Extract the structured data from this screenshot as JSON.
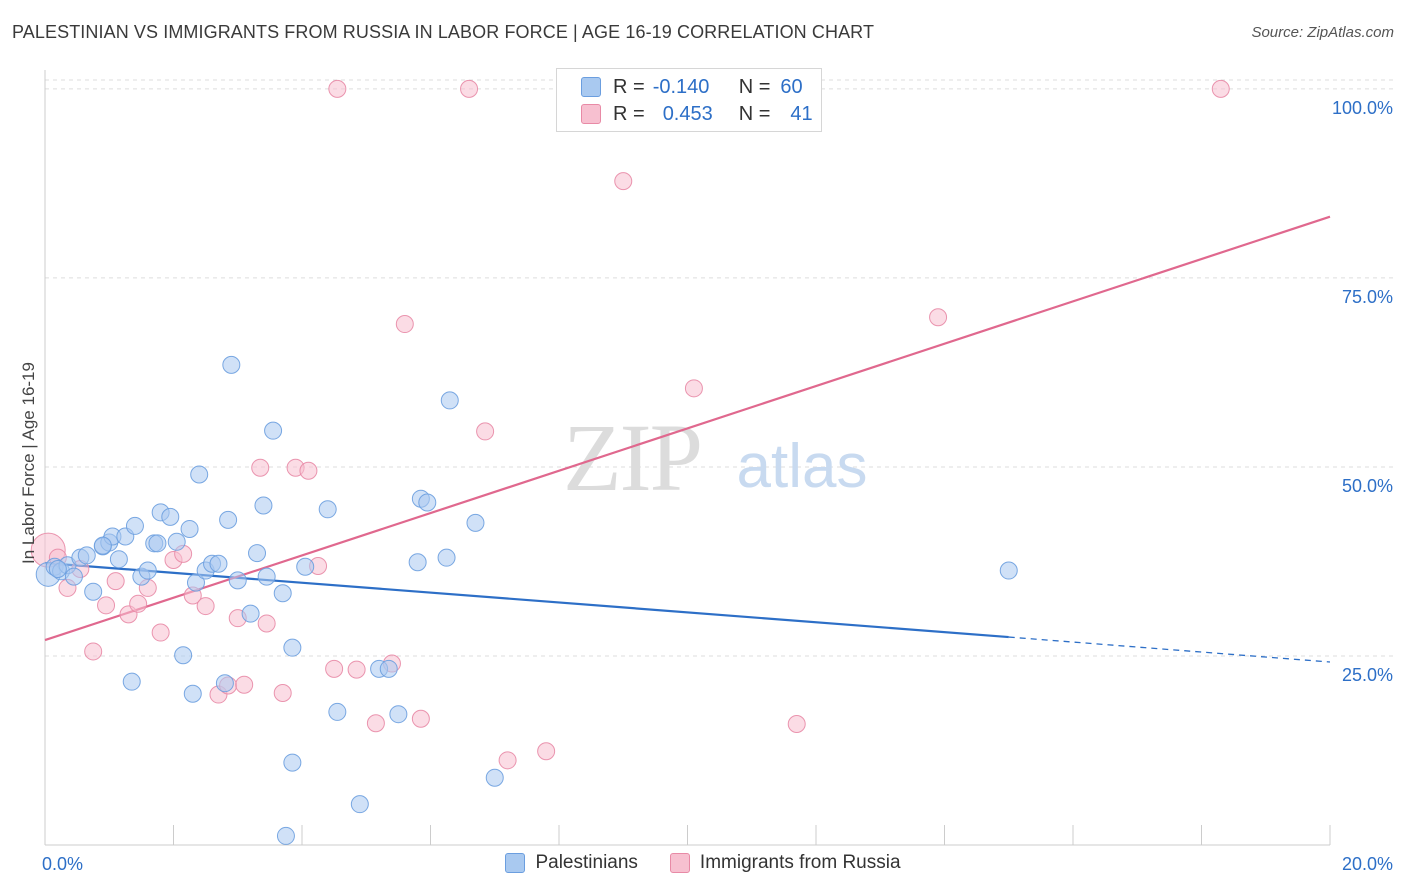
{
  "title": "PALESTINIAN VS IMMIGRANTS FROM RUSSIA IN LABOR FORCE | AGE 16-19 CORRELATION CHART",
  "source": "Source: ZipAtlas.com",
  "watermark": {
    "zip": "ZIP",
    "atlas": "atlas"
  },
  "legend": {
    "rows": [
      {
        "r_label": "R =",
        "r_value": "-0.140",
        "n_label": "N =",
        "n_value": "60",
        "color": "#a9c9f0",
        "border": "#6b9edf"
      },
      {
        "r_label": "R =",
        "r_value": "0.453",
        "n_label": "N =",
        "n_value": "41",
        "color": "#f7c0d0",
        "border": "#e88aa6"
      }
    ]
  },
  "bottom_legend": [
    {
      "label": "Palestinians",
      "color": "#a9c9f0",
      "border": "#6b9edf"
    },
    {
      "label": "Immigrants from Russia",
      "color": "#f7c0d0",
      "border": "#e88aa6"
    }
  ],
  "chart_data": {
    "type": "scatter",
    "title": "PALESTINIAN VS IMMIGRANTS FROM RUSSIA IN LABOR FORCE | AGE 16-19 CORRELATION CHART",
    "xlabel": "",
    "ylabel": "In Labor Force | Age 16-19",
    "xlim": [
      0,
      20
    ],
    "ylim": [
      0,
      102.5
    ],
    "x_ticks": [
      0,
      2,
      4,
      6,
      8,
      10,
      12,
      14,
      16,
      18,
      20
    ],
    "x_tick_labels": {
      "0": "0.0%",
      "20": "20.0%"
    },
    "y_ticks": [
      25,
      50,
      75,
      100
    ],
    "y_tick_labels": [
      "25.0%",
      "50.0%",
      "75.0%",
      "100.0%"
    ],
    "grid": true,
    "legend_position": "top-center",
    "series": [
      {
        "name": "Palestinians",
        "color": "#6b9edf",
        "fill": "#a9c9f0",
        "line_color": "#2d6fc7",
        "trend": {
          "x0": 0,
          "y0": 37.3,
          "x1": 15.0,
          "y1": 27.5,
          "dashed_to_x": 20,
          "dashed_to_y": 24.2
        },
        "points": [
          [
            0.05,
            35.8
          ],
          [
            0.15,
            36.8
          ],
          [
            0.25,
            36.2
          ],
          [
            0.35,
            37.0
          ],
          [
            0.45,
            35.5
          ],
          [
            0.55,
            38.0
          ],
          [
            0.65,
            38.3
          ],
          [
            0.75,
            33.5
          ],
          [
            0.9,
            39.5
          ],
          [
            1.0,
            40.0
          ],
          [
            1.05,
            40.8
          ],
          [
            1.15,
            37.8
          ],
          [
            1.25,
            40.8
          ],
          [
            1.4,
            42.2
          ],
          [
            1.5,
            35.5
          ],
          [
            1.6,
            36.3
          ],
          [
            1.7,
            39.9
          ],
          [
            1.75,
            39.9
          ],
          [
            1.8,
            44.0
          ],
          [
            1.95,
            43.4
          ],
          [
            2.05,
            40.1
          ],
          [
            2.15,
            25.1
          ],
          [
            2.25,
            41.8
          ],
          [
            2.35,
            34.7
          ],
          [
            2.4,
            49.0
          ],
          [
            2.5,
            36.3
          ],
          [
            2.6,
            37.2
          ],
          [
            2.7,
            37.2
          ],
          [
            2.8,
            21.4
          ],
          [
            2.85,
            43.0
          ],
          [
            2.9,
            63.5
          ],
          [
            3.0,
            35.0
          ],
          [
            3.2,
            30.6
          ],
          [
            3.3,
            38.6
          ],
          [
            3.4,
            44.9
          ],
          [
            3.45,
            35.5
          ],
          [
            3.55,
            54.8
          ],
          [
            3.7,
            33.3
          ],
          [
            3.75,
            1.2
          ],
          [
            3.85,
            26.1
          ],
          [
            3.85,
            10.9
          ],
          [
            4.05,
            36.8
          ],
          [
            4.4,
            44.4
          ],
          [
            4.55,
            17.6
          ],
          [
            4.9,
            5.4
          ],
          [
            5.2,
            23.3
          ],
          [
            5.35,
            23.3
          ],
          [
            5.5,
            17.3
          ],
          [
            5.8,
            37.4
          ],
          [
            5.85,
            45.8
          ],
          [
            5.95,
            45.3
          ],
          [
            6.25,
            38.0
          ],
          [
            6.3,
            58.8
          ],
          [
            6.7,
            42.6
          ],
          [
            7.0,
            8.9
          ],
          [
            1.35,
            21.6
          ],
          [
            0.9,
            39.6
          ],
          [
            2.3,
            20.0
          ],
          [
            15.0,
            36.3
          ],
          [
            0.2,
            36.5
          ]
        ]
      },
      {
        "name": "Immigrants from Russia",
        "color": "#e88aa6",
        "fill": "#f7c0d0",
        "line_color": "#e0688e",
        "trend": {
          "x0": 0,
          "y0": 27.1,
          "x1": 20,
          "y1": 83.1
        },
        "points": [
          [
            0.05,
            39.0
          ],
          [
            0.2,
            38.0
          ],
          [
            0.35,
            34.0
          ],
          [
            0.55,
            36.5
          ],
          [
            0.75,
            25.6
          ],
          [
            0.95,
            31.7
          ],
          [
            1.1,
            34.9
          ],
          [
            1.3,
            30.5
          ],
          [
            1.45,
            31.9
          ],
          [
            1.6,
            34.0
          ],
          [
            1.8,
            28.1
          ],
          [
            2.0,
            37.7
          ],
          [
            2.15,
            38.5
          ],
          [
            2.3,
            33.0
          ],
          [
            2.5,
            31.6
          ],
          [
            2.7,
            19.9
          ],
          [
            2.85,
            21.1
          ],
          [
            3.0,
            30.0
          ],
          [
            3.1,
            21.2
          ],
          [
            3.35,
            49.9
          ],
          [
            3.45,
            29.3
          ],
          [
            3.7,
            20.1
          ],
          [
            3.9,
            49.9
          ],
          [
            4.1,
            49.5
          ],
          [
            4.25,
            36.9
          ],
          [
            4.5,
            23.3
          ],
          [
            4.55,
            100.0
          ],
          [
            4.85,
            23.2
          ],
          [
            5.15,
            16.1
          ],
          [
            5.4,
            24.0
          ],
          [
            5.6,
            68.9
          ],
          [
            5.85,
            16.7
          ],
          [
            6.6,
            100.0
          ],
          [
            6.85,
            54.7
          ],
          [
            7.2,
            11.2
          ],
          [
            7.8,
            12.4
          ],
          [
            9.0,
            87.8
          ],
          [
            10.1,
            60.4
          ],
          [
            11.7,
            16.0
          ],
          [
            13.9,
            69.8
          ],
          [
            18.3,
            100.0
          ]
        ]
      }
    ]
  }
}
